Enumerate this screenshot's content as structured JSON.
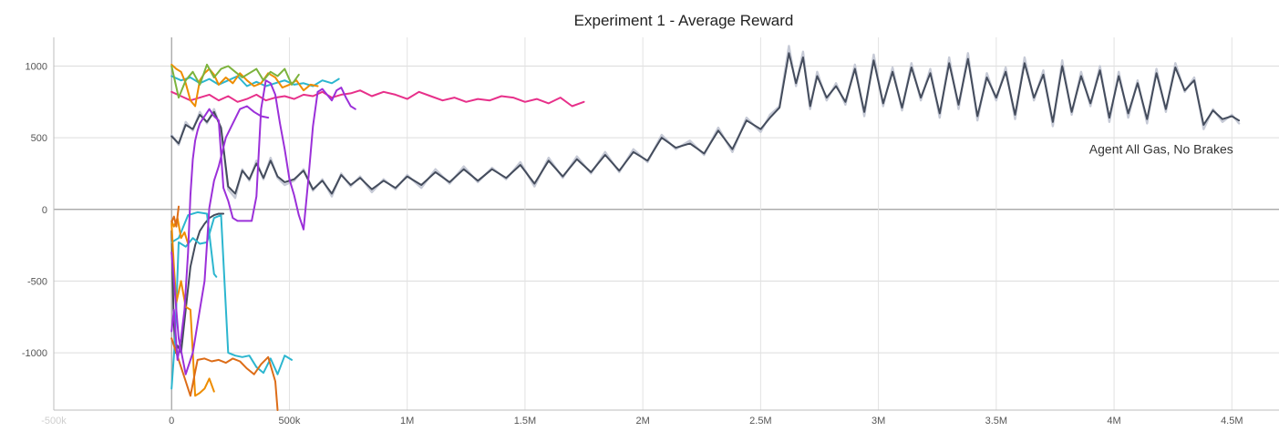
{
  "chart_data": {
    "type": "line",
    "title": "Experiment 1 - Average Reward",
    "xlabel": "",
    "ylabel": "",
    "xlim": [
      -500000,
      4700000
    ],
    "ylim": [
      -1400,
      1200
    ],
    "grid": true,
    "x_ticks": [
      {
        "value": -500000,
        "label": "-500k"
      },
      {
        "value": 0,
        "label": "0"
      },
      {
        "value": 500000,
        "label": "500k"
      },
      {
        "value": 1000000,
        "label": "1M"
      },
      {
        "value": 1500000,
        "label": "1.5M"
      },
      {
        "value": 2000000,
        "label": "2M"
      },
      {
        "value": 2500000,
        "label": "2.5M"
      },
      {
        "value": 3000000,
        "label": "3M"
      },
      {
        "value": 3500000,
        "label": "3.5M"
      },
      {
        "value": 4000000,
        "label": "4M"
      },
      {
        "value": 4500000,
        "label": "4.5M"
      }
    ],
    "y_ticks": [
      {
        "value": 1000,
        "label": "1000"
      },
      {
        "value": 500,
        "label": "500"
      },
      {
        "value": 0,
        "label": "0"
      },
      {
        "value": -500,
        "label": "-500"
      },
      {
        "value": -1000,
        "label": "-1000"
      }
    ],
    "annotations": [
      {
        "text": "Agent All Gas, No Brakes",
        "x": 4200000,
        "y": 420
      }
    ],
    "series": [
      {
        "color": "#c6cad6",
        "raw": true,
        "x": [
          0,
          30000,
          60000,
          90000,
          120000,
          150000,
          180000,
          210000,
          240000,
          270000,
          300000,
          330000,
          360000,
          390000,
          420000,
          450000,
          480000,
          520000,
          560000,
          600000,
          640000,
          680000,
          720000,
          760000,
          800000,
          850000,
          900000,
          950000,
          1000000,
          1060000,
          1120000,
          1180000,
          1240000,
          1300000,
          1360000,
          1420000,
          1480000,
          1540000,
          1600000,
          1660000,
          1720000,
          1780000,
          1840000,
          1900000,
          1960000,
          2020000,
          2080000,
          2140000,
          2200000,
          2260000,
          2320000,
          2380000,
          2440000,
          2500000,
          2540000,
          2580000,
          2620000,
          2650000,
          2680000,
          2710000,
          2740000,
          2780000,
          2820000,
          2860000,
          2900000,
          2940000,
          2980000,
          3020000,
          3060000,
          3100000,
          3140000,
          3180000,
          3220000,
          3260000,
          3300000,
          3340000,
          3380000,
          3420000,
          3460000,
          3500000,
          3540000,
          3580000,
          3620000,
          3660000,
          3700000,
          3740000,
          3780000,
          3820000,
          3860000,
          3900000,
          3940000,
          3980000,
          4020000,
          4060000,
          4100000,
          4140000,
          4180000,
          4220000,
          4260000,
          4300000,
          4340000,
          4380000,
          4420000,
          4460000,
          4500000,
          4530000
        ],
        "y": [
          520,
          450,
          610,
          550,
          680,
          600,
          700,
          560,
          140,
          80,
          280,
          200,
          340,
          210,
          360,
          220,
          170,
          200,
          280,
          130,
          210,
          90,
          250,
          160,
          230,
          120,
          210,
          140,
          240,
          150,
          280,
          180,
          300,
          190,
          290,
          210,
          330,
          160,
          360,
          220,
          370,
          250,
          400,
          260,
          420,
          330,
          520,
          420,
          480,
          380,
          570,
          400,
          640,
          540,
          660,
          720,
          1140,
          860,
          1100,
          700,
          960,
          760,
          880,
          730,
          1010,
          650,
          1080,
          720,
          990,
          690,
          1020,
          760,
          980,
          640,
          1060,
          700,
          1090,
          620,
          950,
          760,
          990,
          630,
          1060,
          760,
          970,
          580,
          1040,
          660,
          960,
          720,
          1000,
          610,
          960,
          640,
          900,
          600,
          980,
          680,
          1020,
          820,
          920,
          560,
          700,
          610,
          660,
          600
        ]
      },
      {
        "color": "#444c5c",
        "x": [
          0,
          30000,
          60000,
          90000,
          120000,
          150000,
          180000,
          210000,
          240000,
          270000,
          300000,
          330000,
          360000,
          390000,
          420000,
          450000,
          480000,
          520000,
          560000,
          600000,
          640000,
          680000,
          720000,
          760000,
          800000,
          850000,
          900000,
          950000,
          1000000,
          1060000,
          1120000,
          1180000,
          1240000,
          1300000,
          1360000,
          1420000,
          1480000,
          1540000,
          1600000,
          1660000,
          1720000,
          1780000,
          1840000,
          1900000,
          1960000,
          2020000,
          2080000,
          2140000,
          2200000,
          2260000,
          2320000,
          2380000,
          2440000,
          2500000,
          2540000,
          2580000,
          2620000,
          2650000,
          2680000,
          2710000,
          2740000,
          2780000,
          2820000,
          2860000,
          2900000,
          2940000,
          2980000,
          3020000,
          3060000,
          3100000,
          3140000,
          3180000,
          3220000,
          3260000,
          3300000,
          3340000,
          3380000,
          3420000,
          3460000,
          3500000,
          3540000,
          3580000,
          3620000,
          3660000,
          3700000,
          3740000,
          3780000,
          3820000,
          3860000,
          3900000,
          3940000,
          3980000,
          4020000,
          4060000,
          4100000,
          4140000,
          4180000,
          4220000,
          4260000,
          4300000,
          4340000,
          4380000,
          4420000,
          4460000,
          4500000,
          4530000
        ],
        "y": [
          510,
          460,
          590,
          560,
          660,
          610,
          680,
          570,
          160,
          110,
          270,
          210,
          320,
          220,
          340,
          230,
          190,
          210,
          270,
          140,
          200,
          110,
          240,
          170,
          220,
          140,
          200,
          150,
          230,
          170,
          260,
          190,
          280,
          200,
          280,
          220,
          310,
          180,
          340,
          230,
          350,
          260,
          380,
          270,
          400,
          340,
          500,
          430,
          460,
          390,
          550,
          420,
          620,
          560,
          640,
          710,
          1090,
          880,
          1060,
          720,
          930,
          780,
          860,
          750,
          980,
          680,
          1040,
          740,
          960,
          710,
          990,
          780,
          950,
          670,
          1020,
          730,
          1050,
          650,
          920,
          780,
          960,
          660,
          1020,
          780,
          940,
          610,
          1000,
          680,
          930,
          740,
          970,
          640,
          930,
          670,
          880,
          630,
          950,
          700,
          990,
          830,
          900,
          590,
          690,
          630,
          650,
          620
        ]
      },
      {
        "color": "#444c5c",
        "x": [
          0,
          8000,
          15000,
          25000,
          40000,
          60000,
          80000,
          100000,
          120000,
          140000,
          160000,
          180000,
          200000,
          220000
        ],
        "y": [
          -150,
          -700,
          -1000,
          -950,
          -1000,
          -700,
          -400,
          -250,
          -150,
          -100,
          -60,
          -40,
          -30,
          -30
        ]
      },
      {
        "color": "#2cb6cf",
        "x": [
          0,
          15000,
          30000,
          60000,
          90000,
          120000,
          150000,
          180000,
          210000,
          240000,
          270000,
          300000,
          330000,
          360000,
          390000,
          420000,
          450000,
          480000,
          510000
        ],
        "y": [
          -1250,
          -900,
          -230,
          -260,
          -200,
          -240,
          -230,
          -60,
          -40,
          -1000,
          -1020,
          -1030,
          -1020,
          -1100,
          -1140,
          -1040,
          -1150,
          -1020,
          -1050
        ]
      },
      {
        "color": "#2cb6cf",
        "x": [
          0,
          30000,
          70000,
          110000,
          150000,
          180000,
          190000
        ],
        "y": [
          -230,
          -200,
          -40,
          -20,
          -30,
          -450,
          -470
        ]
      },
      {
        "color": "#2cb6cf",
        "x": [
          0,
          40000,
          80000,
          120000,
          160000,
          200000,
          240000,
          280000,
          320000,
          360000,
          400000,
          440000,
          480000,
          520000,
          560000,
          600000,
          640000,
          680000,
          710000
        ],
        "y": [
          930,
          900,
          920,
          880,
          910,
          870,
          900,
          930,
          860,
          890,
          860,
          880,
          900,
          870,
          880,
          860,
          900,
          880,
          910
        ]
      },
      {
        "color": "#e7308a",
        "x": [
          0,
          40000,
          80000,
          120000,
          160000,
          200000,
          240000,
          280000,
          320000,
          360000,
          400000,
          440000,
          480000,
          520000,
          560000,
          600000,
          640000,
          680000,
          720000,
          760000,
          800000,
          850000,
          900000,
          950000,
          1000000,
          1050000,
          1100000,
          1150000,
          1200000,
          1250000,
          1300000,
          1350000,
          1400000,
          1450000,
          1500000,
          1550000,
          1600000,
          1650000,
          1700000,
          1750000
        ],
        "y": [
          820,
          790,
          760,
          780,
          800,
          760,
          790,
          750,
          770,
          800,
          760,
          780,
          790,
          770,
          800,
          790,
          820,
          780,
          800,
          810,
          830,
          790,
          820,
          800,
          770,
          820,
          790,
          760,
          780,
          750,
          770,
          760,
          790,
          780,
          750,
          770,
          740,
          780,
          720,
          750
        ]
      },
      {
        "color": "#ee8d00",
        "x": [
          0,
          20000,
          40000,
          60000,
          80000,
          100000,
          120000,
          140000,
          160000,
          180000,
          200000,
          230000,
          260000,
          290000,
          320000,
          350000,
          380000,
          410000,
          440000,
          470000,
          500000,
          530000,
          560000,
          590000,
          620000
        ],
        "y": [
          1010,
          980,
          960,
          880,
          760,
          720,
          900,
          950,
          980,
          940,
          870,
          920,
          880,
          950,
          900,
          860,
          880,
          950,
          920,
          850,
          870,
          900,
          830,
          870,
          860
        ]
      },
      {
        "color": "#ee8d00",
        "x": [
          0,
          10000,
          20000,
          40000,
          60000,
          80000,
          100000,
          120000,
          140000,
          160000,
          180000
        ],
        "y": [
          -100,
          -400,
          -650,
          -500,
          -680,
          -700,
          -1300,
          -1280,
          -1250,
          -1180,
          -1270
        ]
      },
      {
        "color": "#ee8d00",
        "x": [
          0,
          10000,
          25000,
          40000,
          55000,
          70000
        ],
        "y": [
          -80,
          -120,
          -60,
          -200,
          -160,
          -240
        ]
      },
      {
        "color": "#dd6d18",
        "x": [
          0,
          20000,
          50000,
          80000,
          110000,
          140000,
          170000,
          200000,
          230000,
          260000,
          290000,
          320000,
          350000,
          380000,
          410000,
          440000,
          450000
        ],
        "y": [
          -900,
          -1000,
          -1150,
          -1300,
          -1050,
          -1040,
          -1060,
          -1050,
          -1070,
          -1040,
          -1060,
          -1110,
          -1150,
          -1080,
          -1030,
          -1200,
          -1400
        ]
      },
      {
        "color": "#dd6d18",
        "x": [
          0,
          10000,
          20000,
          30000
        ],
        "y": [
          -90,
          -50,
          -120,
          20
        ]
      },
      {
        "color": "#7cb33d",
        "x": [
          0,
          30000,
          60000,
          90000,
          120000,
          150000,
          180000,
          210000,
          240000,
          270000,
          300000,
          330000,
          360000,
          390000,
          420000,
          450000,
          480000,
          510000,
          540000
        ],
        "y": [
          1000,
          780,
          900,
          960,
          870,
          1010,
          920,
          980,
          1000,
          960,
          920,
          950,
          980,
          900,
          960,
          930,
          980,
          870,
          940
        ]
      },
      {
        "color": "#9b30d9",
        "x": [
          0,
          10000,
          25000,
          40000,
          55000,
          70000,
          80000,
          90000,
          100000,
          110000,
          120000,
          140000,
          160000,
          180000,
          200000,
          220000,
          240000,
          260000,
          280000,
          300000,
          320000,
          340000,
          360000,
          380000,
          400000,
          420000,
          440000,
          460000,
          480000,
          500000,
          520000,
          540000,
          560000,
          580000,
          600000,
          620000,
          640000,
          660000,
          680000,
          700000,
          720000,
          740000,
          760000,
          780000
        ],
        "y": [
          -850,
          -700,
          -1050,
          -900,
          -700,
          -300,
          100,
          350,
          480,
          550,
          600,
          650,
          700,
          650,
          620,
          150,
          60,
          -60,
          -80,
          -80,
          -80,
          -80,
          90,
          700,
          900,
          880,
          800,
          600,
          420,
          210,
          100,
          -40,
          -140,
          200,
          580,
          820,
          840,
          800,
          760,
          830,
          850,
          780,
          720,
          700
        ]
      },
      {
        "color": "#9b30d9",
        "x": [
          0,
          30000,
          60000,
          90000,
          120000,
          140000,
          160000,
          180000,
          200000,
          230000,
          260000,
          290000,
          320000,
          350000,
          380000,
          410000
        ],
        "y": [
          -300,
          -900,
          -1150,
          -1000,
          -700,
          -500,
          10,
          200,
          300,
          500,
          600,
          700,
          720,
          680,
          650,
          640
        ]
      }
    ]
  }
}
